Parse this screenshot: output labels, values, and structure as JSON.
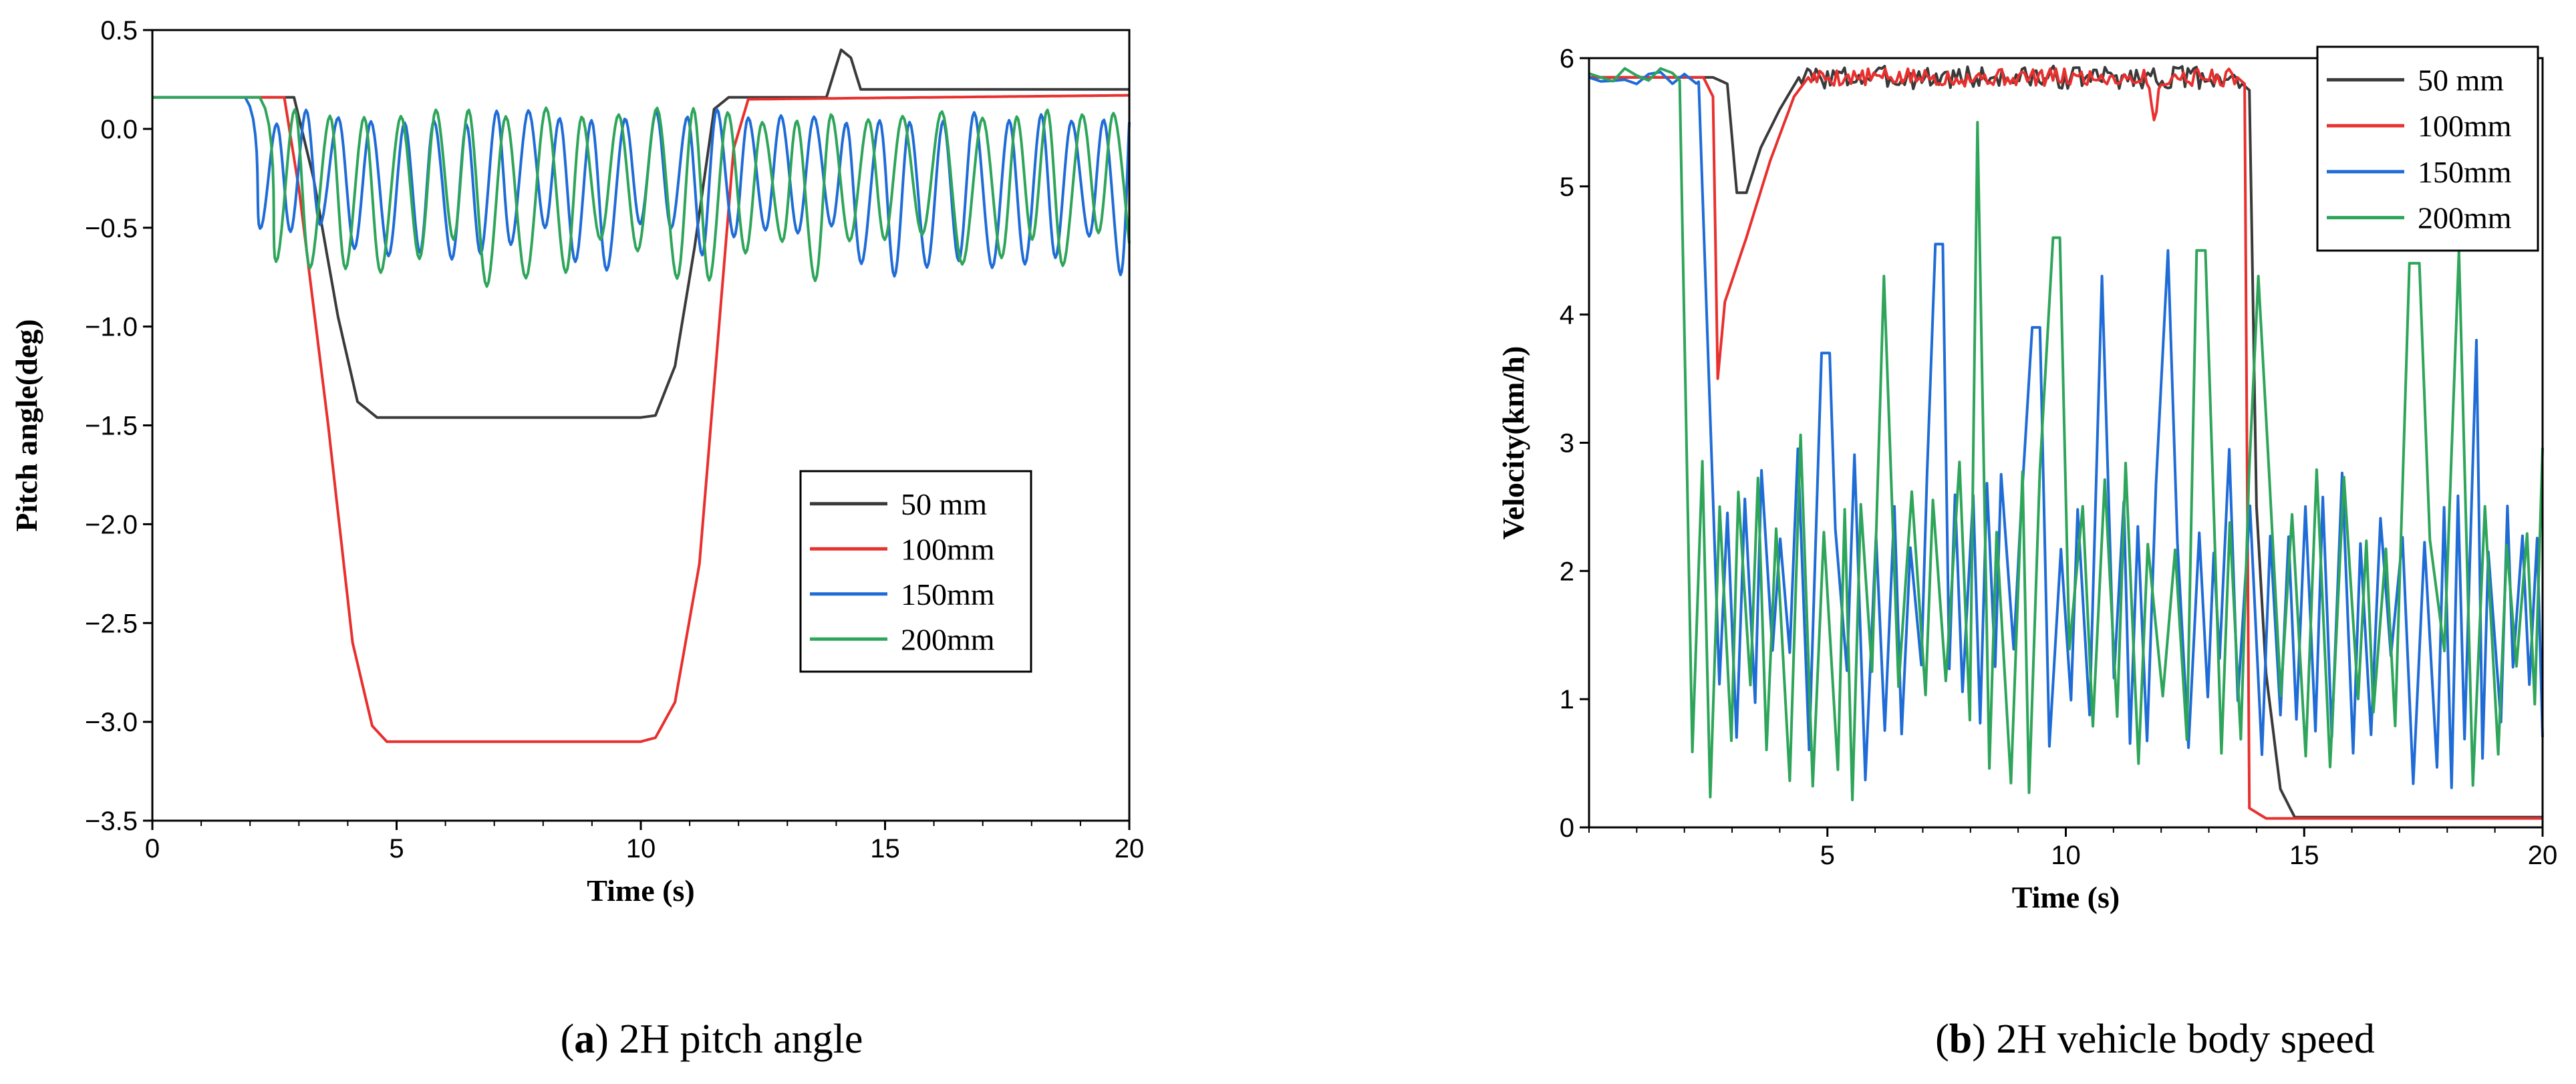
{
  "chart_data": [
    {
      "type": "line",
      "panel_label": "a",
      "caption_rest": " 2H pitch angle",
      "xlabel": "Time (s)",
      "ylabel": "Pitch angle(deg)",
      "xlim": [
        0,
        20
      ],
      "ylim": [
        -3.5,
        0.5
      ],
      "xticks": [
        0,
        5,
        10,
        15,
        20
      ],
      "xtick_labels": [
        "0",
        "5",
        "10",
        "15",
        "20"
      ],
      "yticks": [
        0.5,
        0.0,
        -0.5,
        -1.0,
        -1.5,
        -2.0,
        -2.5,
        -3.0,
        -3.5
      ],
      "ytick_labels": [
        "0.5",
        "0.0",
        "−0.5",
        "−1.0",
        "−1.5",
        "−2.0",
        "−2.5",
        "−3.0",
        "−3.5"
      ],
      "legend_position": "center-right",
      "series": [
        {
          "name": "50 mm",
          "color": "#3a3a3a",
          "kind": "piecewise",
          "points": [
            [
              0,
              0.16
            ],
            [
              2.9,
              0.16
            ],
            [
              3.3,
              -0.25
            ],
            [
              3.8,
              -0.95
            ],
            [
              4.2,
              -1.38
            ],
            [
              4.6,
              -1.46
            ],
            [
              10,
              -1.46
            ],
            [
              10.3,
              -1.45
            ],
            [
              10.7,
              -1.2
            ],
            [
              11.1,
              -0.6
            ],
            [
              11.5,
              0.1
            ],
            [
              11.8,
              0.16
            ],
            [
              13.8,
              0.16
            ],
            [
              14.1,
              0.4
            ],
            [
              14.3,
              0.36
            ],
            [
              14.5,
              0.2
            ],
            [
              20,
              0.2
            ]
          ]
        },
        {
          "name": "100mm",
          "color": "#e8302e",
          "kind": "piecewise",
          "points": [
            [
              0,
              0.16
            ],
            [
              2.7,
              0.16
            ],
            [
              3.0,
              -0.3
            ],
            [
              3.6,
              -1.5
            ],
            [
              4.1,
              -2.6
            ],
            [
              4.5,
              -3.02
            ],
            [
              4.8,
              -3.1
            ],
            [
              10,
              -3.1
            ],
            [
              10.3,
              -3.08
            ],
            [
              10.7,
              -2.9
            ],
            [
              11.2,
              -2.2
            ],
            [
              11.6,
              -1.0
            ],
            [
              11.9,
              -0.1
            ],
            [
              12.2,
              0.15
            ],
            [
              20,
              0.17
            ]
          ]
        },
        {
          "name": "150mm",
          "color": "#1f6cd6",
          "kind": "oscillation",
          "start": 1.9,
          "baseline": 0.16,
          "period": 0.66,
          "high": 0.1,
          "low": -0.62,
          "phase": 0.25,
          "seed": 7
        },
        {
          "name": "200mm",
          "color": "#2ea55a",
          "kind": "oscillation",
          "start": 2.2,
          "baseline": 0.16,
          "period": 0.72,
          "high": 0.11,
          "low": -0.66,
          "phase": 0.0,
          "seed": 13
        }
      ]
    },
    {
      "type": "line",
      "panel_label": "b",
      "caption_rest": " 2H vehicle body speed",
      "xlabel": "Time (s)",
      "ylabel": "Velocity(km/h)",
      "xlim": [
        0,
        20
      ],
      "ylim": [
        0,
        6
      ],
      "xticks": [
        5,
        10,
        15,
        20
      ],
      "xtick_labels": [
        "5",
        "10",
        "15",
        "20"
      ],
      "yticks": [
        0,
        1,
        2,
        3,
        4,
        5,
        6
      ],
      "ytick_labels": [
        "0",
        "1",
        "2",
        "3",
        "4",
        "5",
        "6"
      ],
      "legend_position": "top-right",
      "series": [
        {
          "name": "50 mm",
          "color": "#3a3a3a",
          "kind": "piecewise",
          "points": [
            [
              0,
              5.85
            ],
            [
              2.4,
              5.85
            ],
            [
              2.6,
              5.85
            ],
            [
              2.9,
              5.8
            ],
            [
              3.1,
              4.95
            ],
            [
              3.3,
              4.95
            ],
            [
              3.6,
              5.3
            ],
            [
              4.0,
              5.6
            ],
            [
              4.4,
              5.85
            ],
            [
              13.4,
              5.85
            ],
            [
              13.7,
              5.8
            ],
            [
              13.85,
              5.75
            ],
            [
              14.0,
              2.5
            ],
            [
              14.2,
              1.2
            ],
            [
              14.5,
              0.3
            ],
            [
              14.8,
              0.08
            ],
            [
              20,
              0.08
            ]
          ],
          "noise": {
            "from": 4.4,
            "to": 13.7,
            "amp": 0.09,
            "seed": 3
          }
        },
        {
          "name": "100mm",
          "color": "#e8302e",
          "kind": "piecewise",
          "points": [
            [
              0,
              5.85
            ],
            [
              2.4,
              5.85
            ],
            [
              2.6,
              5.7
            ],
            [
              2.7,
              3.5
            ],
            [
              2.85,
              4.1
            ],
            [
              3.3,
              4.6
            ],
            [
              3.8,
              5.2
            ],
            [
              4.3,
              5.7
            ],
            [
              4.6,
              5.85
            ],
            [
              11.7,
              5.85
            ],
            [
              11.85,
              5.55
            ],
            [
              12.05,
              5.85
            ],
            [
              13.6,
              5.85
            ],
            [
              13.75,
              5.8
            ],
            [
              13.85,
              0.15
            ],
            [
              14.2,
              0.07
            ],
            [
              20,
              0.07
            ]
          ],
          "noise": {
            "from": 4.6,
            "to": 13.6,
            "amp": 0.07,
            "seed": 5
          }
        },
        {
          "name": "150mm",
          "color": "#1f6cd6",
          "kind": "spiky",
          "start": 2.3,
          "pre": 5.85,
          "end": 20,
          "mid": 1.9,
          "amp": 1.6,
          "period": 0.38,
          "seed": 11,
          "peaks": [
            [
              5.0,
              3.7
            ],
            [
              7.3,
              4.55
            ],
            [
              9.4,
              3.9
            ],
            [
              10.7,
              4.3
            ],
            [
              12.2,
              4.5
            ],
            [
              18.5,
              3.8
            ]
          ]
        },
        {
          "name": "200mm",
          "color": "#2ea55a",
          "kind": "spiky",
          "start": 1.9,
          "pre": 5.88,
          "end": 20,
          "mid": 1.9,
          "amp": 1.7,
          "period": 0.45,
          "seed": 19,
          "peaks": [
            [
              1.9,
              5.5
            ],
            [
              6.1,
              4.3
            ],
            [
              8.2,
              5.5
            ],
            [
              9.8,
              4.6
            ],
            [
              12.9,
              4.5
            ],
            [
              14.1,
              4.3
            ],
            [
              17.3,
              4.4
            ],
            [
              18.1,
              4.5
            ]
          ]
        }
      ]
    }
  ]
}
